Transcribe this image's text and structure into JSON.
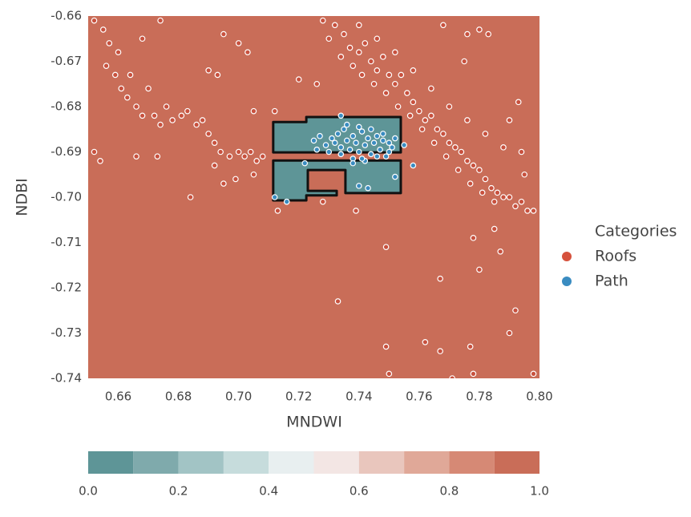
{
  "chart_data": {
    "type": "scatter",
    "xlabel": "MNDWI",
    "ylabel": "NDBI",
    "xlim": [
      0.65,
      0.8
    ],
    "ylim": [
      -0.74,
      -0.66
    ],
    "xticks": [
      0.66,
      0.68,
      {
        "value": 0.7,
        "label": "0.70"
      },
      0.72,
      0.74,
      0.76,
      0.78,
      {
        "value": 0.8,
        "label": "0.80"
      }
    ],
    "yticks": [
      -0.66,
      -0.67,
      -0.68,
      -0.69,
      {
        "value": -0.7,
        "label": "-0.70"
      },
      -0.71,
      -0.72,
      -0.73,
      -0.74
    ],
    "background_color": "#c96d58",
    "legend_title": "Categories",
    "legend_position": "right",
    "region": {
      "color": "#5e9597",
      "polygons": [
        {
          "x": [
            0.7115,
            0.7225,
            0.7225,
            0.7539,
            0.7539,
            0.7115
          ],
          "y": [
            -0.6834,
            -0.6834,
            -0.6823,
            -0.6823,
            -0.6901,
            -0.6901
          ]
        },
        {
          "x": [
            0.7115,
            0.7539,
            0.7539,
            0.7355,
            0.7355,
            0.723,
            0.723,
            0.7326,
            0.7326,
            0.7225,
            0.7225,
            0.7115
          ],
          "y": [
            -0.6919,
            -0.6919,
            -0.6991,
            -0.6991,
            -0.694,
            -0.694,
            -0.6986,
            -0.6986,
            -0.6996,
            -0.6996,
            -0.7007,
            -0.7007
          ]
        }
      ]
    },
    "series": [
      {
        "name": "Roofs",
        "color": "#d6523d",
        "point_color": "#c8513e",
        "x": [
          0.652,
          0.655,
          0.657,
          0.656,
          0.659,
          0.661,
          0.663,
          0.664,
          0.666,
          0.668,
          0.67,
          0.672,
          0.674,
          0.676,
          0.678,
          0.681,
          0.683,
          0.686,
          0.688,
          0.69,
          0.692,
          0.694,
          0.697,
          0.7,
          0.702,
          0.704,
          0.706,
          0.708,
          0.652,
          0.654,
          0.666,
          0.673,
          0.692,
          0.695,
          0.699,
          0.705,
          0.684,
          0.66,
          0.668,
          0.674,
          0.728,
          0.732,
          0.735,
          0.737,
          0.74,
          0.742,
          0.744,
          0.746,
          0.748,
          0.75,
          0.752,
          0.754,
          0.756,
          0.758,
          0.76,
          0.762,
          0.764,
          0.766,
          0.768,
          0.77,
          0.772,
          0.774,
          0.776,
          0.778,
          0.78,
          0.782,
          0.784,
          0.786,
          0.788,
          0.79,
          0.792,
          0.794,
          0.796,
          0.798,
          0.73,
          0.734,
          0.738,
          0.741,
          0.745,
          0.749,
          0.753,
          0.757,
          0.761,
          0.765,
          0.769,
          0.773,
          0.777,
          0.781,
          0.785,
          0.74,
          0.746,
          0.752,
          0.758,
          0.764,
          0.77,
          0.776,
          0.782,
          0.788,
          0.794,
          0.72,
          0.726,
          0.705,
          0.712,
          0.713,
          0.716,
          0.728,
          0.739,
          0.749,
          0.733,
          0.749,
          0.762,
          0.767,
          0.767,
          0.778,
          0.78,
          0.785,
          0.787,
          0.792,
          0.79,
          0.777,
          0.778,
          0.771,
          0.798,
          0.75,
          0.768,
          0.776,
          0.78,
          0.783,
          0.775,
          0.793,
          0.79,
          0.795,
          0.695,
          0.7,
          0.703,
          0.69,
          0.693
        ],
        "y": [
          -0.661,
          -0.663,
          -0.666,
          -0.671,
          -0.673,
          -0.676,
          -0.678,
          -0.673,
          -0.68,
          -0.682,
          -0.676,
          -0.682,
          -0.684,
          -0.68,
          -0.683,
          -0.682,
          -0.681,
          -0.684,
          -0.683,
          -0.686,
          -0.688,
          -0.69,
          -0.691,
          -0.69,
          -0.691,
          -0.69,
          -0.692,
          -0.691,
          -0.69,
          -0.692,
          -0.691,
          -0.691,
          -0.693,
          -0.697,
          -0.696,
          -0.695,
          -0.7,
          -0.668,
          -0.665,
          -0.661,
          -0.661,
          -0.662,
          -0.664,
          -0.667,
          -0.668,
          -0.666,
          -0.67,
          -0.672,
          -0.669,
          -0.673,
          -0.675,
          -0.673,
          -0.677,
          -0.679,
          -0.681,
          -0.683,
          -0.682,
          -0.685,
          -0.686,
          -0.688,
          -0.689,
          -0.69,
          -0.692,
          -0.693,
          -0.694,
          -0.696,
          -0.698,
          -0.699,
          -0.7,
          -0.7,
          -0.702,
          -0.701,
          -0.703,
          -0.703,
          -0.665,
          -0.669,
          -0.671,
          -0.673,
          -0.675,
          -0.677,
          -0.68,
          -0.682,
          -0.685,
          -0.688,
          -0.691,
          -0.694,
          -0.697,
          -0.699,
          -0.701,
          -0.662,
          -0.665,
          -0.668,
          -0.672,
          -0.676,
          -0.68,
          -0.683,
          -0.686,
          -0.689,
          -0.69,
          -0.674,
          -0.675,
          -0.681,
          -0.681,
          -0.703,
          -0.701,
          -0.701,
          -0.703,
          -0.711,
          -0.723,
          -0.733,
          -0.732,
          -0.734,
          -0.718,
          -0.709,
          -0.716,
          -0.707,
          -0.712,
          -0.725,
          -0.73,
          -0.733,
          -0.739,
          -0.74,
          -0.739,
          -0.739,
          -0.662,
          -0.664,
          -0.663,
          -0.664,
          -0.67,
          -0.679,
          -0.683,
          -0.695,
          -0.664,
          -0.666,
          -0.668,
          -0.672,
          -0.673
        ]
      },
      {
        "name": "Path",
        "color": "#3a8cc1",
        "point_color": "#3a8cc1",
        "x": [
          0.725,
          0.727,
          0.729,
          0.731,
          0.733,
          0.734,
          0.735,
          0.736,
          0.737,
          0.738,
          0.739,
          0.74,
          0.741,
          0.742,
          0.743,
          0.744,
          0.745,
          0.746,
          0.747,
          0.748,
          0.749,
          0.75,
          0.751,
          0.752,
          0.726,
          0.73,
          0.734,
          0.738,
          0.742,
          0.746,
          0.75,
          0.736,
          0.74,
          0.744,
          0.748,
          0.732,
          0.712,
          0.716,
          0.74,
          0.743,
          0.752,
          0.758,
          0.755,
          0.734,
          0.722,
          0.738,
          0.741
        ],
        "y": [
          -0.6875,
          -0.6865,
          -0.6885,
          -0.687,
          -0.686,
          -0.689,
          -0.685,
          -0.6875,
          -0.6895,
          -0.6865,
          -0.688,
          -0.69,
          -0.6855,
          -0.6885,
          -0.687,
          -0.6905,
          -0.688,
          -0.6865,
          -0.6895,
          -0.6875,
          -0.691,
          -0.688,
          -0.689,
          -0.687,
          -0.6895,
          -0.69,
          -0.6905,
          -0.6915,
          -0.692,
          -0.691,
          -0.69,
          -0.684,
          -0.6845,
          -0.685,
          -0.686,
          -0.688,
          -0.7,
          -0.701,
          -0.6975,
          -0.698,
          -0.6955,
          -0.693,
          -0.6885,
          -0.682,
          -0.6925,
          -0.6925,
          -0.6915
        ]
      }
    ],
    "colorbar": {
      "lim": [
        0,
        1
      ],
      "levels": [
        0,
        0.1,
        0.2,
        0.3,
        0.4,
        0.5,
        0.6,
        0.7,
        0.8,
        0.9,
        1.0
      ],
      "colors": [
        "#5e9597",
        "#7faaac",
        "#a2c4c5",
        "#c6dcdc",
        "#e8eff0",
        "#f3e6e4",
        "#e9c6bd",
        "#e0a898",
        "#d68975",
        "#c96d58"
      ],
      "ticks": [
        {
          "value": 0,
          "label": "0.0"
        },
        {
          "value": 0.2,
          "label": "0.2"
        },
        {
          "value": 0.4,
          "label": "0.4"
        },
        {
          "value": 0.6,
          "label": "0.6"
        },
        {
          "value": 0.8,
          "label": "0.8"
        },
        {
          "value": 1,
          "label": "1.0"
        }
      ]
    }
  }
}
